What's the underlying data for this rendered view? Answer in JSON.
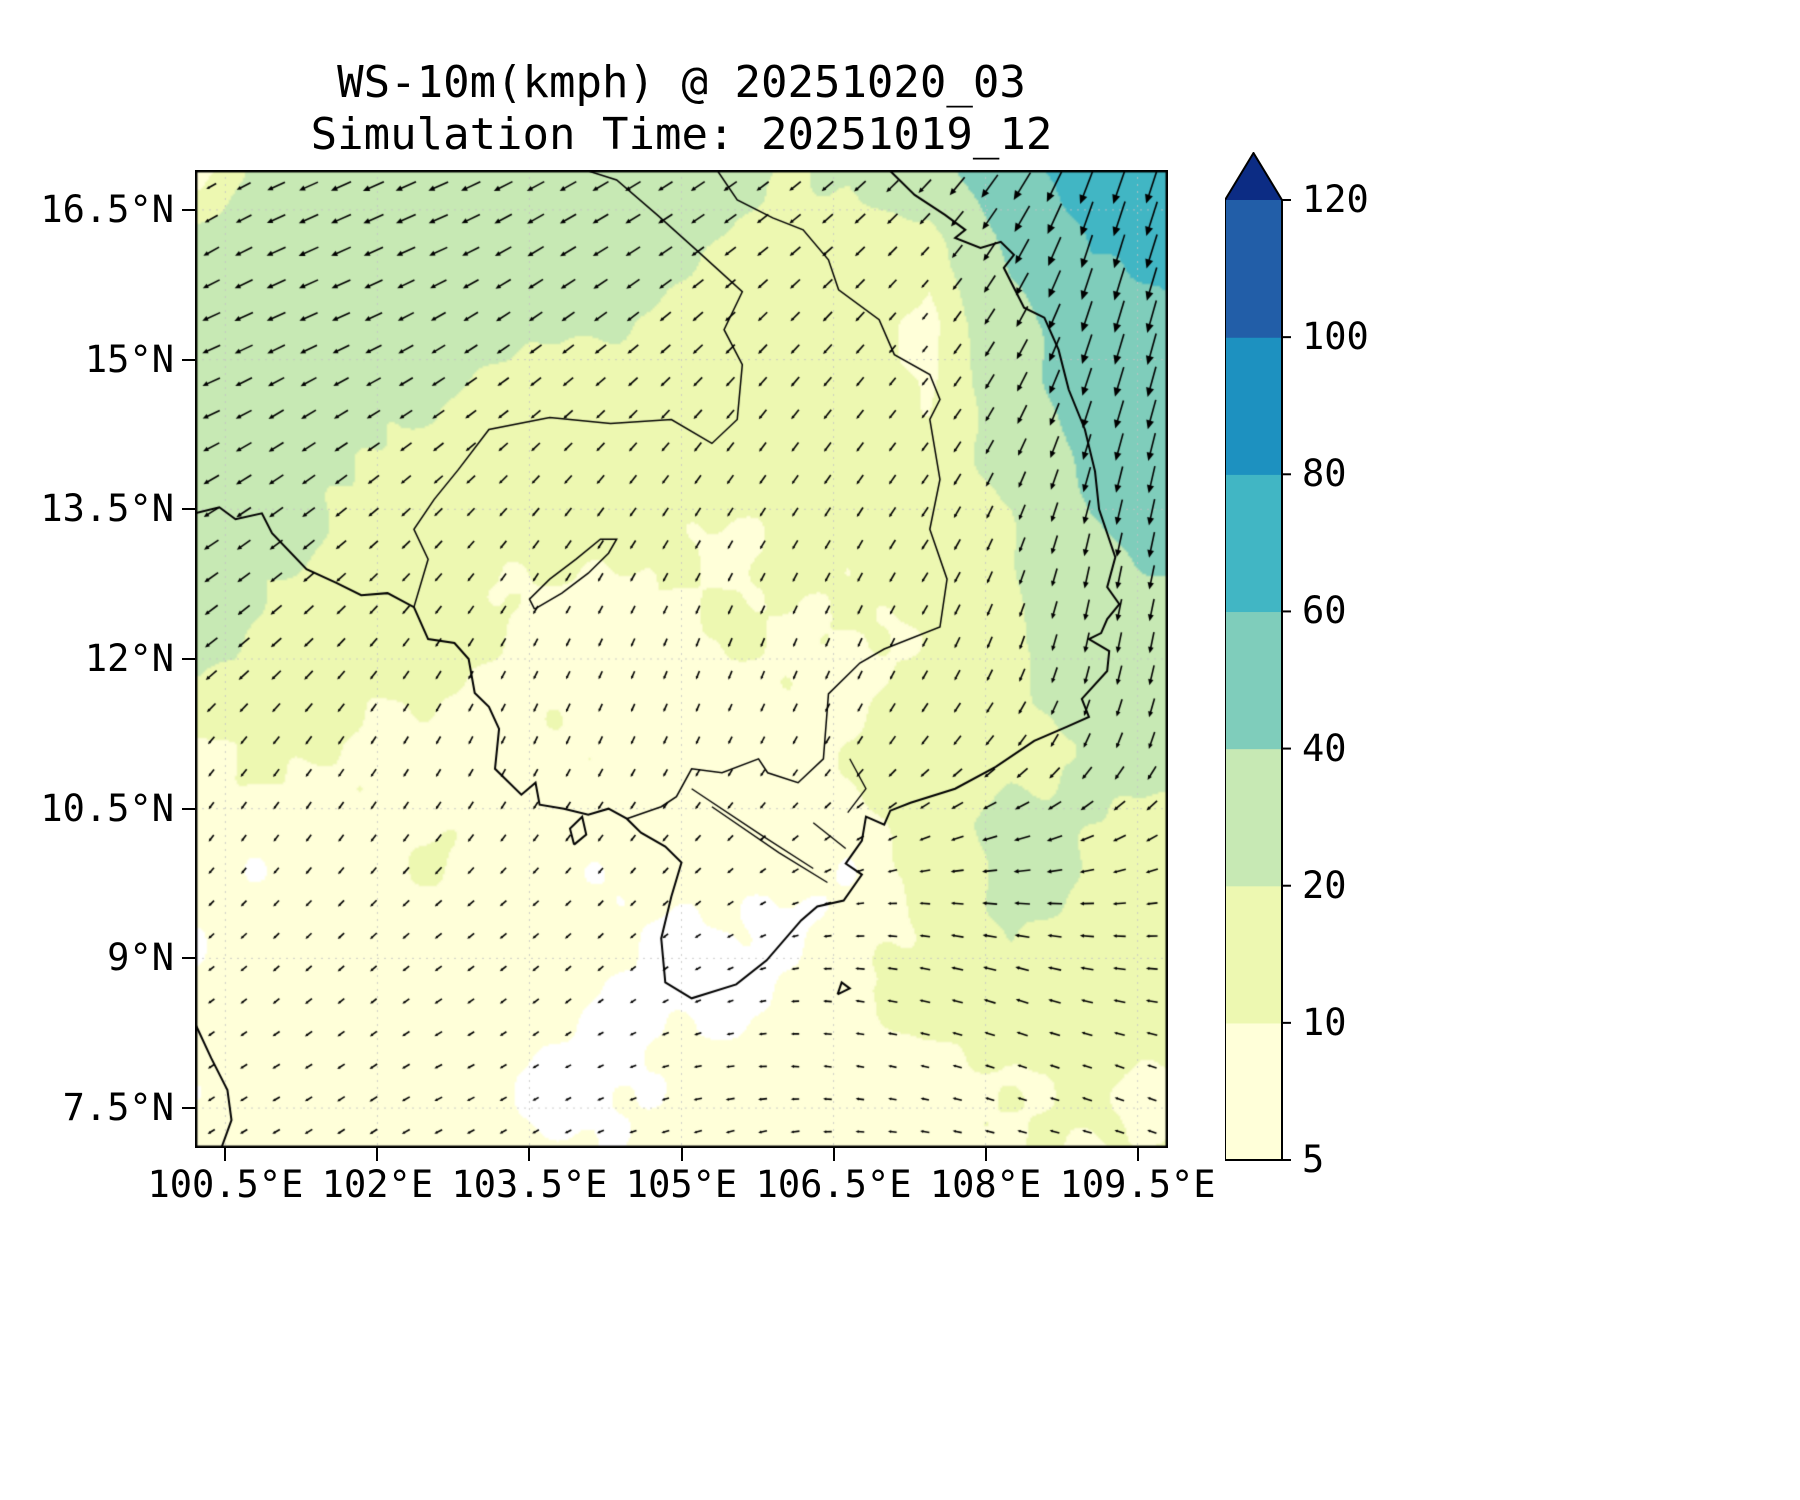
{
  "header": {
    "title": "WS-10m(kmph) @ 20251020_03",
    "subtitle": "Simulation Time: 20251019_12"
  },
  "axes": {
    "x_ticks": [
      "100.5°E",
      "102°E",
      "103.5°E",
      "105°E",
      "106.5°E",
      "108°E",
      "109.5°E"
    ],
    "x_tick_values": [
      100.5,
      102,
      103.5,
      105,
      106.5,
      108,
      109.5
    ],
    "y_ticks": [
      "16.5°N",
      "15°N",
      "13.5°N",
      "12°N",
      "10.5°N",
      "9°N",
      "7.5°N"
    ],
    "y_tick_values": [
      16.5,
      15,
      13.5,
      12,
      10.5,
      9,
      7.5
    ],
    "lon_range": [
      100.2,
      109.8
    ],
    "lat_range": [
      7.1,
      16.9
    ]
  },
  "colorbar": {
    "levels": [
      5,
      10,
      20,
      40,
      60,
      80,
      100,
      120
    ],
    "tick_labels": [
      "5",
      "10",
      "20",
      "40",
      "60",
      "80",
      "100",
      "120"
    ],
    "colors": [
      "#ffffd9",
      "#edf8b1",
      "#c7e9b4",
      "#7fcdbb",
      "#41b6c4",
      "#1d91c0",
      "#225ea8"
    ],
    "over_color": "#0c2c84",
    "under_color": "#ffffff"
  },
  "chart_data": {
    "type": "heatmap",
    "subtype": "filled-contour-with-wind-quiver",
    "title": "WS-10m(kmph) @ 20251020_03",
    "xlabel": "",
    "ylabel": "",
    "xlim": [
      100.2,
      109.8
    ],
    "ylim": [
      7.1,
      16.9
    ],
    "grid": true,
    "levels": [
      5,
      10,
      20,
      40,
      60,
      80,
      100,
      120
    ],
    "lon": [
      100.25,
      101.05,
      101.85,
      102.65,
      103.45,
      104.25,
      105.05,
      105.85,
      106.65,
      107.45,
      108.25,
      109.05,
      109.85
    ],
    "lat": [
      7.0,
      7.833,
      8.667,
      9.5,
      10.333,
      11.167,
      12.0,
      12.833,
      13.667,
      14.5,
      15.333,
      16.167,
      17.0
    ],
    "speed_kmph": [
      [
        7,
        8,
        8,
        7,
        6,
        6,
        7,
        8,
        8,
        9,
        9,
        10,
        10
      ],
      [
        6,
        8,
        8,
        7,
        5,
        4,
        6,
        7,
        7,
        8,
        9,
        10,
        11
      ],
      [
        5,
        6,
        7,
        8,
        6,
        4,
        4,
        5,
        8,
        12,
        18,
        16,
        12
      ],
      [
        6,
        7,
        8,
        8,
        7,
        6,
        5,
        4,
        6,
        12,
        22,
        18,
        12
      ],
      [
        7,
        8,
        8,
        9,
        8,
        8,
        7,
        6,
        8,
        14,
        24,
        20,
        16
      ],
      [
        9,
        10,
        10,
        9,
        8,
        8,
        8,
        8,
        9,
        12,
        18,
        22,
        26
      ],
      [
        22,
        18,
        12,
        10,
        9,
        8,
        8,
        9,
        10,
        12,
        16,
        30,
        34
      ],
      [
        24,
        20,
        14,
        11,
        10,
        10,
        10,
        10,
        11,
        13,
        18,
        36,
        40
      ],
      [
        26,
        24,
        18,
        14,
        12,
        12,
        12,
        12,
        12,
        14,
        22,
        42,
        46
      ],
      [
        28,
        26,
        22,
        18,
        16,
        15,
        14,
        14,
        15,
        10,
        28,
        48,
        52
      ],
      [
        30,
        30,
        28,
        24,
        22,
        20,
        18,
        16,
        16,
        6,
        34,
        55,
        58
      ],
      [
        24,
        32,
        34,
        30,
        28,
        26,
        22,
        18,
        18,
        14,
        45,
        62,
        60
      ],
      [
        4,
        30,
        36,
        34,
        32,
        28,
        24,
        20,
        22,
        35,
        55,
        68,
        64
      ]
    ],
    "wind_u": [
      [
        -0.7,
        -0.7,
        -0.6,
        -0.6,
        -0.5,
        -0.5,
        -0.6,
        -0.6,
        -0.7,
        -0.8,
        -0.8,
        -0.8,
        -0.8
      ],
      [
        -0.7,
        -0.7,
        -0.6,
        -0.6,
        -0.5,
        -0.5,
        -0.5,
        -0.6,
        -0.7,
        -0.8,
        -0.9,
        -0.9,
        -0.8
      ],
      [
        -0.7,
        -0.6,
        -0.6,
        -0.6,
        -0.5,
        -0.4,
        -0.4,
        -0.5,
        -0.7,
        -0.9,
        -0.9,
        -0.9,
        -0.9
      ],
      [
        -0.6,
        -0.6,
        -0.6,
        -0.6,
        -0.6,
        -0.5,
        -0.5,
        -0.6,
        -0.8,
        -0.9,
        -0.95,
        -0.9,
        -0.85
      ],
      [
        -0.5,
        -0.5,
        -0.5,
        -0.5,
        -0.5,
        -0.5,
        -0.5,
        -0.6,
        -0.7,
        -0.85,
        -0.9,
        -0.8,
        -0.7
      ],
      [
        -0.6,
        -0.55,
        -0.5,
        -0.45,
        -0.4,
        -0.4,
        -0.4,
        -0.45,
        -0.5,
        -0.6,
        -0.6,
        -0.4,
        -0.3
      ],
      [
        -0.75,
        -0.7,
        -0.6,
        -0.5,
        -0.45,
        -0.4,
        -0.35,
        -0.35,
        -0.4,
        -0.45,
        -0.35,
        -0.2,
        -0.2
      ],
      [
        -0.8,
        -0.75,
        -0.7,
        -0.6,
        -0.55,
        -0.5,
        -0.45,
        -0.45,
        -0.45,
        -0.5,
        -0.35,
        -0.2,
        -0.2
      ],
      [
        -0.85,
        -0.8,
        -0.75,
        -0.7,
        -0.65,
        -0.6,
        -0.55,
        -0.55,
        -0.55,
        -0.55,
        -0.4,
        -0.25,
        -0.2
      ],
      [
        -0.9,
        -0.85,
        -0.85,
        -0.8,
        -0.75,
        -0.7,
        -0.65,
        -0.6,
        -0.6,
        -0.6,
        -0.45,
        -0.3,
        -0.25
      ],
      [
        -0.9,
        -0.9,
        -0.9,
        -0.85,
        -0.8,
        -0.8,
        -0.75,
        -0.7,
        -0.65,
        -0.6,
        -0.5,
        -0.3,
        -0.25
      ],
      [
        -0.85,
        -0.9,
        -0.9,
        -0.9,
        -0.85,
        -0.85,
        -0.8,
        -0.75,
        -0.7,
        -0.65,
        -0.5,
        -0.3,
        -0.3
      ],
      [
        -0.85,
        -0.9,
        -0.9,
        -0.9,
        -0.9,
        -0.85,
        -0.8,
        -0.75,
        -0.7,
        -0.65,
        -0.55,
        -0.35,
        -0.3
      ]
    ],
    "wind_v": [
      [
        -0.4,
        -0.4,
        -0.4,
        -0.3,
        -0.3,
        -0.2,
        -0.2,
        -0.2,
        0.0,
        0.1,
        0.2,
        0.2,
        0.3
      ],
      [
        -0.5,
        -0.4,
        -0.4,
        -0.3,
        -0.3,
        -0.2,
        -0.1,
        0.0,
        0.1,
        0.2,
        0.3,
        0.3,
        0.3
      ],
      [
        -0.5,
        -0.5,
        -0.5,
        -0.4,
        -0.4,
        -0.3,
        -0.2,
        -0.1,
        0.1,
        0.2,
        0.3,
        0.2,
        0.1
      ],
      [
        -0.6,
        -0.6,
        -0.6,
        -0.5,
        -0.5,
        -0.5,
        -0.4,
        -0.3,
        -0.1,
        0.1,
        0.1,
        0.0,
        -0.1
      ],
      [
        -0.7,
        -0.7,
        -0.7,
        -0.7,
        -0.7,
        -0.7,
        -0.6,
        -0.6,
        -0.5,
        -0.4,
        -0.3,
        -0.4,
        -0.5
      ],
      [
        -0.7,
        -0.7,
        -0.75,
        -0.8,
        -0.85,
        -0.85,
        -0.85,
        -0.85,
        -0.8,
        -0.75,
        -0.75,
        -0.9,
        -0.95
      ],
      [
        -0.6,
        -0.65,
        -0.7,
        -0.8,
        -0.85,
        -0.9,
        -0.9,
        -0.9,
        -0.9,
        -0.85,
        -0.9,
        -0.97,
        -0.97
      ],
      [
        -0.55,
        -0.6,
        -0.65,
        -0.7,
        -0.8,
        -0.85,
        -0.85,
        -0.85,
        -0.85,
        -0.8,
        -0.9,
        -0.97,
        -0.97
      ],
      [
        -0.5,
        -0.55,
        -0.6,
        -0.65,
        -0.7,
        -0.75,
        -0.8,
        -0.8,
        -0.8,
        -0.8,
        -0.9,
        -0.95,
        -0.97
      ],
      [
        -0.4,
        -0.5,
        -0.5,
        -0.55,
        -0.6,
        -0.65,
        -0.7,
        -0.75,
        -0.75,
        -0.75,
        -0.85,
        -0.95,
        -0.95
      ],
      [
        -0.4,
        -0.4,
        -0.4,
        -0.5,
        -0.55,
        -0.6,
        -0.65,
        -0.7,
        -0.7,
        -0.75,
        -0.85,
        -0.95,
        -0.95
      ],
      [
        -0.5,
        -0.4,
        -0.4,
        -0.4,
        -0.5,
        -0.5,
        -0.55,
        -0.6,
        -0.65,
        -0.7,
        -0.85,
        -0.95,
        -0.95
      ],
      [
        -0.5,
        -0.4,
        -0.4,
        -0.4,
        -0.45,
        -0.5,
        -0.5,
        -0.55,
        -0.6,
        -0.7,
        -0.8,
        -0.9,
        -0.95
      ]
    ]
  },
  "map": {
    "coastlines": [
      [
        [
          107.05,
          16.9
        ],
        [
          107.3,
          16.65
        ],
        [
          107.6,
          16.45
        ],
        [
          107.8,
          16.3
        ],
        [
          107.7,
          16.22
        ],
        [
          107.95,
          16.12
        ],
        [
          108.15,
          16.18
        ],
        [
          108.28,
          16.05
        ],
        [
          108.18,
          15.92
        ],
        [
          108.38,
          15.52
        ],
        [
          108.58,
          15.42
        ],
        [
          108.72,
          15.1
        ],
        [
          108.82,
          14.7
        ],
        [
          108.98,
          14.3
        ],
        [
          109.08,
          13.88
        ],
        [
          109.12,
          13.5
        ],
        [
          109.28,
          13.02
        ],
        [
          109.2,
          12.72
        ],
        [
          109.32,
          12.55
        ],
        [
          109.2,
          12.4
        ],
        [
          109.14,
          12.26
        ],
        [
          109.02,
          12.2
        ],
        [
          109.22,
          12.08
        ],
        [
          109.2,
          11.88
        ],
        [
          108.95,
          11.6
        ],
        [
          109.02,
          11.42
        ],
        [
          108.8,
          11.32
        ],
        [
          108.48,
          11.18
        ],
        [
          108.1,
          10.92
        ],
        [
          107.7,
          10.7
        ],
        [
          107.26,
          10.56
        ],
        [
          107.06,
          10.48
        ],
        [
          107.0,
          10.34
        ],
        [
          106.82,
          10.42
        ],
        [
          106.78,
          10.18
        ],
        [
          106.62,
          9.95
        ],
        [
          106.78,
          9.84
        ],
        [
          106.6,
          9.58
        ],
        [
          106.34,
          9.52
        ],
        [
          106.18,
          9.38
        ],
        [
          105.84,
          8.98
        ],
        [
          105.54,
          8.74
        ],
        [
          105.1,
          8.6
        ],
        [
          104.84,
          8.76
        ],
        [
          104.8,
          9.2
        ],
        [
          104.9,
          9.62
        ],
        [
          105.0,
          9.96
        ],
        [
          104.84,
          10.12
        ],
        [
          104.6,
          10.26
        ],
        [
          104.46,
          10.4
        ],
        [
          104.28,
          10.5
        ],
        [
          104.08,
          10.44
        ],
        [
          103.84,
          10.5
        ],
        [
          103.6,
          10.54
        ],
        [
          103.56,
          10.76
        ],
        [
          103.42,
          10.64
        ],
        [
          103.16,
          10.9
        ],
        [
          103.2,
          11.3
        ],
        [
          103.1,
          11.52
        ],
        [
          102.96,
          11.66
        ],
        [
          102.9,
          12.0
        ],
        [
          102.76,
          12.16
        ],
        [
          102.5,
          12.2
        ],
        [
          102.36,
          12.52
        ],
        [
          102.1,
          12.66
        ],
        [
          101.84,
          12.64
        ],
        [
          101.6,
          12.76
        ],
        [
          101.3,
          12.9
        ],
        [
          100.96,
          13.26
        ],
        [
          100.86,
          13.46
        ],
        [
          100.6,
          13.4
        ],
        [
          100.44,
          13.52
        ],
        [
          100.2,
          13.46
        ]
      ],
      [
        [
          100.2,
          8.35
        ],
        [
          100.36,
          8.0
        ],
        [
          100.52,
          7.68
        ],
        [
          100.56,
          7.38
        ],
        [
          100.46,
          7.1
        ]
      ],
      [
        [
          103.94,
          10.14
        ],
        [
          104.06,
          10.24
        ],
        [
          104.02,
          10.42
        ],
        [
          103.9,
          10.3
        ],
        [
          103.94,
          10.14
        ]
      ],
      [
        [
          106.54,
          8.64
        ],
        [
          106.66,
          8.7
        ],
        [
          106.58,
          8.76
        ],
        [
          106.54,
          8.64
        ]
      ]
    ],
    "borders": [
      [
        [
          105.35,
          16.9
        ],
        [
          105.55,
          16.6
        ],
        [
          105.9,
          16.42
        ],
        [
          106.2,
          16.3
        ],
        [
          106.45,
          16.0
        ],
        [
          106.55,
          15.7
        ],
        [
          106.95,
          15.4
        ],
        [
          107.1,
          15.05
        ],
        [
          107.45,
          14.85
        ],
        [
          107.55,
          14.6
        ],
        [
          107.45,
          14.4
        ],
        [
          107.55,
          13.8
        ],
        [
          107.45,
          13.3
        ],
        [
          107.62,
          12.8
        ],
        [
          107.55,
          12.32
        ],
        [
          107.0,
          12.1
        ],
        [
          106.76,
          11.96
        ],
        [
          106.45,
          11.65
        ],
        [
          106.4,
          11.0
        ],
        [
          106.15,
          10.76
        ],
        [
          105.85,
          10.86
        ],
        [
          105.76,
          11.0
        ],
        [
          105.4,
          10.86
        ],
        [
          105.1,
          10.9
        ],
        [
          104.95,
          10.62
        ],
        [
          104.8,
          10.52
        ],
        [
          104.46,
          10.4
        ]
      ],
      [
        [
          102.36,
          12.52
        ],
        [
          102.5,
          13.0
        ],
        [
          102.36,
          13.3
        ],
        [
          102.56,
          13.6
        ],
        [
          102.8,
          13.9
        ],
        [
          103.1,
          14.3
        ],
        [
          103.7,
          14.42
        ],
        [
          104.3,
          14.36
        ],
        [
          104.9,
          14.4
        ],
        [
          105.3,
          14.16
        ],
        [
          105.55,
          14.4
        ],
        [
          105.6,
          14.95
        ],
        [
          105.42,
          15.3
        ],
        [
          105.6,
          15.68
        ],
        [
          105.2,
          16.05
        ],
        [
          104.76,
          16.45
        ],
        [
          104.36,
          16.8
        ],
        [
          104.05,
          16.9
        ]
      ]
    ],
    "lakes": [
      [
        [
          103.55,
          12.5
        ],
        [
          103.82,
          12.66
        ],
        [
          104.08,
          12.86
        ],
        [
          104.28,
          13.06
        ],
        [
          104.36,
          13.2
        ],
        [
          104.2,
          13.2
        ],
        [
          103.96,
          13.0
        ],
        [
          103.7,
          12.8
        ],
        [
          103.5,
          12.6
        ],
        [
          103.55,
          12.5
        ]
      ]
    ],
    "rivers": [
      [
        [
          105.1,
          10.7
        ],
        [
          105.78,
          10.24
        ],
        [
          106.3,
          9.9
        ]
      ],
      [
        [
          105.3,
          10.52
        ],
        [
          105.96,
          10.06
        ],
        [
          106.44,
          9.76
        ]
      ],
      [
        [
          106.3,
          10.36
        ],
        [
          106.62,
          10.1
        ]
      ],
      [
        [
          106.66,
          11.0
        ],
        [
          106.82,
          10.7
        ],
        [
          106.64,
          10.46
        ]
      ]
    ]
  }
}
